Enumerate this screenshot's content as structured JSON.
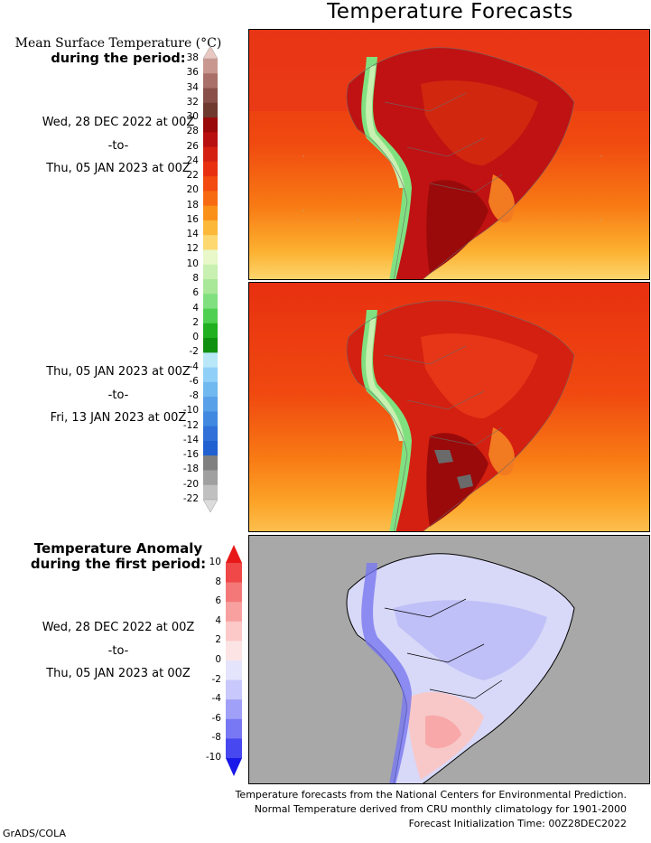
{
  "title": "Temperature Forecasts",
  "forecast_section": {
    "heading_line1": "Mean Surface Temperature (°C)",
    "heading_line2": "during the period:",
    "period1": {
      "start": "Wed, 28 DEC 2022 at 00Z",
      "sep": "-to-",
      "end": "Thu, 05 JAN 2023 at 00Z"
    },
    "period2": {
      "start": "Thu, 05 JAN 2023 at 00Z",
      "sep": "-to-",
      "end": "Fri, 13 JAN 2023 at 00Z"
    },
    "colorbar": {
      "labels": [
        "38",
        "36",
        "34",
        "32",
        "30",
        "28",
        "26",
        "24",
        "22",
        "20",
        "18",
        "16",
        "14",
        "12",
        "10",
        "8",
        "6",
        "4",
        "2",
        "0",
        "-2",
        "-4",
        "-6",
        "-8",
        "-10",
        "-12",
        "-14",
        "-16",
        "-18",
        "-20",
        "-22"
      ],
      "colors": [
        "#e8c8c0",
        "#c89890",
        "#a87068",
        "#885048",
        "#6e3a30",
        "#9a0a0a",
        "#b81010",
        "#d42010",
        "#e83010",
        "#f24a10",
        "#f86a12",
        "#fa9018",
        "#fcb838",
        "#fdd870",
        "#e8f8c8",
        "#c8f0b0",
        "#a8e898",
        "#80e080",
        "#50d050",
        "#20b020",
        "#109010",
        "#b8e8f8",
        "#90d0f8",
        "#70b8f0",
        "#58a0e8",
        "#4088e0",
        "#3070d8",
        "#2060d0",
        "#808080",
        "#a0a0a0",
        "#c0c0c0",
        "#dcdcdc"
      ]
    }
  },
  "anomaly_section": {
    "heading_line1": "Temperature Anomaly",
    "heading_line2": "during the first period:",
    "period": {
      "start": "Wed, 28 DEC 2022 at 00Z",
      "sep": "-to-",
      "end": "Thu, 05 JAN 2023 at 00Z"
    },
    "colorbar": {
      "labels": [
        "10",
        "8",
        "6",
        "4",
        "2",
        "0",
        "-2",
        "-4",
        "-6",
        "-8",
        "-10"
      ],
      "colors": [
        "#e81818",
        "#f04848",
        "#f47878",
        "#f8a0a0",
        "#fcc8c8",
        "#fde4e4",
        "#e4e4fc",
        "#c8c8fc",
        "#a0a0f8",
        "#7878f4",
        "#4848f0",
        "#1818e8"
      ]
    }
  },
  "footnotes": [
    "Temperature forecasts from the National Centers for Environmental Prediction.",
    "Normal Temperature derived from CRU monthly climatology for 1901-2000",
    "Forecast Initialization Time: 00Z28DEC2022"
  ],
  "credit": "GrADS/COLA"
}
